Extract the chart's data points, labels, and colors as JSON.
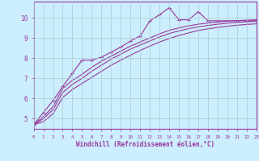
{
  "xlabel": "Windchill (Refroidissement éolien,°C)",
  "xlim": [
    0,
    23
  ],
  "ylim": [
    4.5,
    10.8
  ],
  "yticks": [
    5,
    6,
    7,
    8,
    9,
    10
  ],
  "xticks": [
    0,
    1,
    2,
    3,
    4,
    5,
    6,
    7,
    8,
    9,
    10,
    11,
    12,
    13,
    14,
    15,
    16,
    17,
    18,
    19,
    20,
    21,
    22,
    23
  ],
  "bg_color": "#cceeff",
  "grid_color": "#aacccc",
  "line_color": "#993399",
  "series_marked": [
    4.7,
    5.3,
    5.9,
    6.6,
    7.25,
    7.9,
    7.9,
    8.05,
    8.3,
    8.55,
    8.85,
    9.1,
    9.85,
    10.15,
    10.5,
    9.9,
    9.9,
    10.3,
    9.85,
    9.85,
    9.85,
    9.85,
    9.85,
    9.85
  ],
  "series2": [
    4.7,
    5.1,
    5.6,
    6.5,
    6.9,
    7.2,
    7.55,
    7.85,
    8.1,
    8.35,
    8.6,
    8.8,
    9.0,
    9.2,
    9.38,
    9.5,
    9.6,
    9.68,
    9.74,
    9.79,
    9.83,
    9.86,
    9.88,
    9.9
  ],
  "series3": [
    4.7,
    5.0,
    5.45,
    6.3,
    6.7,
    7.0,
    7.35,
    7.65,
    7.95,
    8.2,
    8.45,
    8.65,
    8.85,
    9.05,
    9.22,
    9.35,
    9.46,
    9.55,
    9.62,
    9.68,
    9.73,
    9.77,
    9.8,
    9.83
  ],
  "series4": [
    4.7,
    4.85,
    5.25,
    6.05,
    6.45,
    6.75,
    7.05,
    7.35,
    7.65,
    7.9,
    8.15,
    8.38,
    8.6,
    8.8,
    8.97,
    9.12,
    9.25,
    9.37,
    9.45,
    9.52,
    9.58,
    9.63,
    9.67,
    9.7
  ]
}
